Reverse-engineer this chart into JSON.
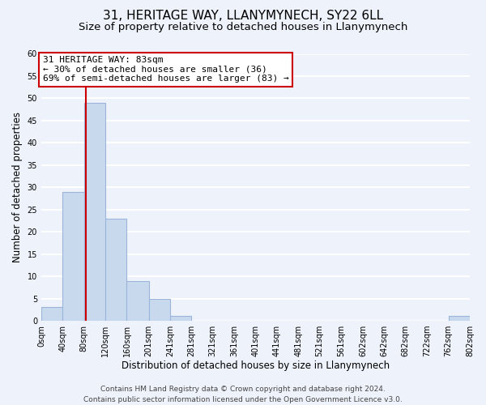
{
  "title": "31, HERITAGE WAY, LLANYMYNECH, SY22 6LL",
  "subtitle": "Size of property relative to detached houses in Llanymynech",
  "xlabel": "Distribution of detached houses by size in Llanymynech",
  "ylabel": "Number of detached properties",
  "bin_edges": [
    0,
    40,
    80,
    120,
    160,
    201,
    241,
    281,
    321,
    361,
    401,
    441,
    481,
    521,
    561,
    602,
    642,
    682,
    722,
    762,
    802
  ],
  "bin_labels": [
    "0sqm",
    "40sqm",
    "80sqm",
    "120sqm",
    "160sqm",
    "201sqm",
    "241sqm",
    "281sqm",
    "321sqm",
    "361sqm",
    "401sqm",
    "441sqm",
    "481sqm",
    "521sqm",
    "561sqm",
    "602sqm",
    "642sqm",
    "682sqm",
    "722sqm",
    "762sqm",
    "802sqm"
  ],
  "counts": [
    3,
    29,
    49,
    23,
    9,
    5,
    1,
    0,
    0,
    0,
    0,
    0,
    0,
    0,
    0,
    0,
    0,
    0,
    0,
    1
  ],
  "bar_color": "#c8d9ee",
  "bar_edge_color": "#9ab5d9",
  "property_line_x": 83,
  "property_line_color": "#cc0000",
  "annotation_line1": "31 HERITAGE WAY: 83sqm",
  "annotation_line2": "← 30% of detached houses are smaller (36)",
  "annotation_line3": "69% of semi-detached houses are larger (83) →",
  "annotation_box_color": "#ffffff",
  "annotation_box_edge": "#cc0000",
  "ylim": [
    0,
    60
  ],
  "yticks": [
    0,
    5,
    10,
    15,
    20,
    25,
    30,
    35,
    40,
    45,
    50,
    55,
    60
  ],
  "footer_text": "Contains HM Land Registry data © Crown copyright and database right 2024.\nContains public sector information licensed under the Open Government Licence v3.0.",
  "background_color": "#eef2fa",
  "plot_background_color": "#eef2fa",
  "grid_color": "#ffffff",
  "title_fontsize": 11,
  "subtitle_fontsize": 9.5,
  "axis_label_fontsize": 8.5,
  "tick_fontsize": 7,
  "annotation_fontsize": 8,
  "footer_fontsize": 6.5
}
